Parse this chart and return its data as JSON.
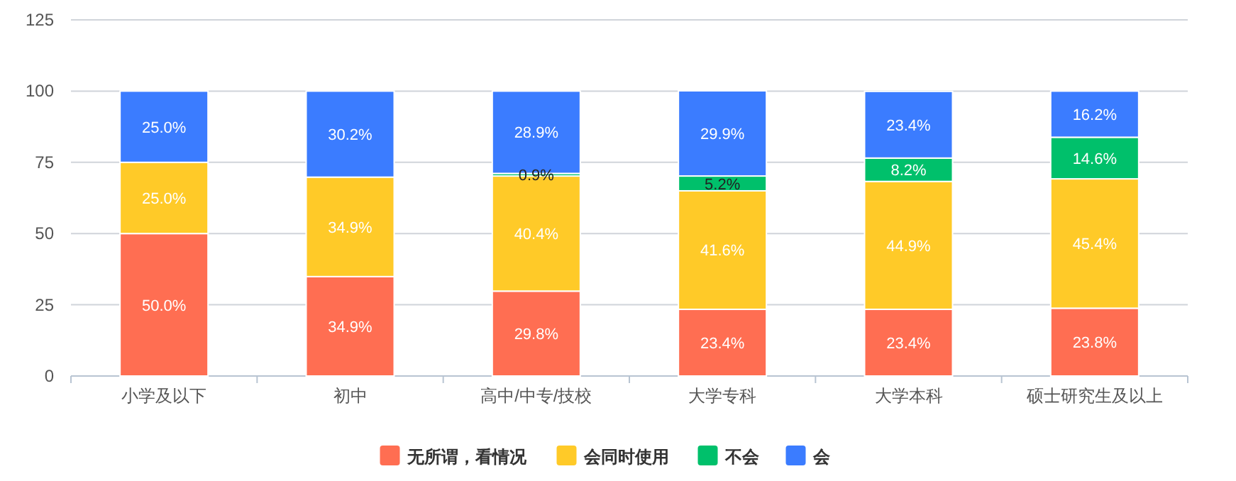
{
  "chart_data": {
    "type": "bar",
    "stacked": true,
    "categories": [
      "小学及以下",
      "初中",
      "高中/中专/技校",
      "大学专科",
      "大学本科",
      "硕士研究生及以上"
    ],
    "ylim": [
      0,
      125
    ],
    "yticks": [
      0,
      25,
      50,
      75,
      100,
      125
    ],
    "grid": "y",
    "legend": "bottom",
    "series": [
      {
        "name": "无所谓，看情况",
        "color": "#ff6e52",
        "values": [
          50.0,
          34.9,
          29.8,
          23.4,
          23.4,
          23.8
        ],
        "value_labels": [
          "50.0%",
          "34.9%",
          "29.8%",
          "23.4%",
          "23.4%",
          "23.8%"
        ]
      },
      {
        "name": "会同时使用",
        "color": "#ffca28",
        "values": [
          25.0,
          34.9,
          40.4,
          41.6,
          44.9,
          45.4
        ],
        "value_labels": [
          "25.0%",
          "34.9%",
          "40.4%",
          "41.6%",
          "44.9%",
          "45.4%"
        ]
      },
      {
        "name": "不会",
        "color": "#00c06b",
        "values": [
          0,
          0,
          0.9,
          5.2,
          8.2,
          14.6
        ],
        "value_labels": [
          null,
          null,
          "0.9%",
          "5.2%",
          "8.2%",
          "14.6%"
        ]
      },
      {
        "name": "会",
        "color": "#3b7cff",
        "values": [
          25.0,
          30.2,
          28.9,
          29.9,
          23.4,
          16.2
        ],
        "value_labels": [
          "25.0%",
          "30.2%",
          "28.9%",
          "29.9%",
          "23.4%",
          "16.2%"
        ]
      }
    ]
  }
}
